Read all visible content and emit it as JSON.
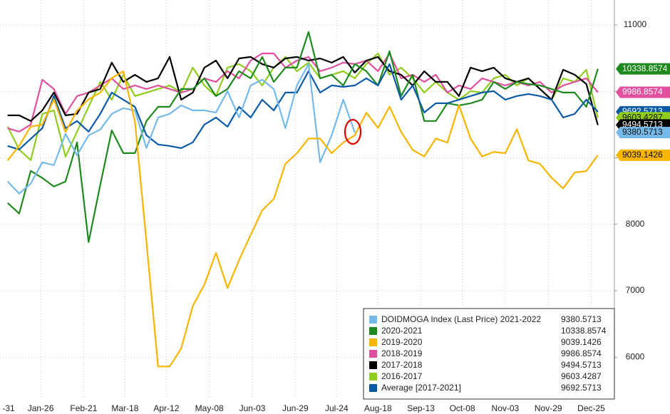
{
  "chart_data": {
    "type": "line",
    "x": [
      6,
      13,
      20,
      27,
      34,
      41,
      48,
      55,
      62,
      69,
      76,
      83,
      90,
      97,
      104,
      111,
      118,
      125,
      132,
      139,
      146,
      153,
      160,
      167,
      174,
      181,
      188,
      195,
      202,
      209,
      216,
      223,
      230,
      237,
      244,
      251,
      258,
      265,
      272,
      279,
      286,
      293,
      300,
      307,
      314,
      321,
      328,
      335,
      342,
      349,
      356,
      363
    ],
    "xlim": [
      1.4,
      373
    ],
    "xticks": [
      {
        "value": 0,
        "label": "-31"
      },
      {
        "value": 26,
        "label": "Jan-26"
      },
      {
        "value": 52,
        "label": "Feb-21"
      },
      {
        "value": 77,
        "label": "Mar-18"
      },
      {
        "value": 102,
        "label": "Apr-12"
      },
      {
        "value": 128,
        "label": "May-08"
      },
      {
        "value": 154,
        "label": "Jun-03"
      },
      {
        "value": 180,
        "label": "Jun-29"
      },
      {
        "value": 205,
        "label": "Jul-24"
      },
      {
        "value": 230,
        "label": "Aug-18"
      },
      {
        "value": 256,
        "label": "Sep-13"
      },
      {
        "value": 281,
        "label": "Oct-08"
      },
      {
        "value": 307,
        "label": "Nov-03"
      },
      {
        "value": 333,
        "label": "Nov-29"
      },
      {
        "value": 359,
        "label": "Dec-25"
      }
    ],
    "ylim": [
      5370,
      11375
    ],
    "yticks": [
      6000,
      7000,
      8000,
      9000,
      10000,
      11000
    ],
    "grid": true,
    "legend": "bottom-right",
    "series": [
      {
        "name": "DOIDMOGA Index (Last Price) 2021-2022",
        "color": "#74b9ea",
        "values": [
          8643,
          8461,
          8611,
          8932,
          8889,
          9361,
          9039,
          9339,
          9425,
          9661,
          9746,
          9714,
          9146,
          9607,
          9661,
          9789,
          9714,
          9714,
          9682,
          10004,
          9607,
          10089,
          10175,
          10036,
          9446,
          10089,
          10411,
          8932,
          9339,
          9875,
          9380.5713,
          null,
          null,
          null,
          null,
          null,
          null,
          null,
          null,
          null,
          null,
          null,
          null,
          null,
          null,
          null,
          null,
          null,
          null,
          null,
          null,
          null
        ]
      },
      {
        "name": "2020-2021",
        "color": "#1e8a1e",
        "values": [
          8321,
          8161,
          8804,
          8696,
          8568,
          8643,
          9232,
          7732,
          8589,
          9414,
          9071,
          9071,
          9554,
          9768,
          9768,
          10036,
          10036,
          10196,
          9929,
          10036,
          10304,
          10196,
          10518,
          10143,
          10357,
          10357,
          10893,
          10196,
          10250,
          10089,
          10411,
          10304,
          10089,
          10604,
          9929,
          10250,
          9554,
          9554,
          9821,
          9789,
          9821,
          9875,
          10143,
          10036,
          10143,
          10111,
          10089,
          10036,
          9982,
          9982,
          9768,
          10338.8574
        ]
      },
      {
        "name": "2019-2020",
        "color": "#f7b500",
        "values": [
          8960,
          9180,
          9470,
          9500,
          9880,
          9390,
          9710,
          9880,
          9980,
          10200,
          10300,
          9550,
          7730,
          5860,
          5860,
          6130,
          6770,
          7090,
          7570,
          7040,
          7460,
          7840,
          8210,
          8380,
          8910,
          9070,
          9290,
          9290,
          9070,
          9230,
          9340,
          9680,
          9450,
          9770,
          9390,
          9120,
          9020,
          9290,
          9230,
          9790,
          9290,
          9020,
          9090,
          9070,
          9430,
          8960,
          8910,
          8700,
          8540,
          8780,
          8800,
          9039.1426
        ]
      },
      {
        "name": "2018-2019",
        "color": "#e0509e",
        "values": [
          9446,
          9393,
          9500,
          10175,
          10036,
          9661,
          9929,
          9982,
          10089,
          10196,
          10036,
          10089,
          10036,
          10089,
          10036,
          9982,
          10036,
          10196,
          10143,
          10304,
          10196,
          10464,
          10571,
          10571,
          10357,
          10464,
          10518,
          10304,
          10357,
          10432,
          10411,
          10464,
          10304,
          10571,
          10196,
          10250,
          10143,
          10250,
          9982,
          10089,
          10036,
          10196,
          10143,
          10089,
          10143,
          10089,
          10143,
          9982,
          10089,
          10143,
          10196,
          9986.8574
        ]
      },
      {
        "name": "2017-2018",
        "color": "#000000",
        "values": [
          9639,
          9639,
          9554,
          9714,
          9982,
          9639,
          9661,
          9982,
          10036,
          10432,
          10143,
          10250,
          10143,
          10196,
          10518,
          9875,
          9982,
          10357,
          10464,
          10196,
          10496,
          10518,
          10411,
          10357,
          10496,
          10518,
          10464,
          10496,
          10432,
          10518,
          10282,
          10464,
          10518,
          10304,
          10250,
          10089,
          10304,
          10143,
          10143,
          9929,
          10357,
          10304,
          10357,
          10196,
          10143,
          10196,
          10036,
          9875,
          10325,
          10250,
          10111,
          9494.5713
        ]
      },
      {
        "name": "2016-2017",
        "color": "#8fcc1c",
        "values": [
          9468,
          9125,
          8964,
          9661,
          9714,
          9018,
          9393,
          9768,
          10143,
          9875,
          10250,
          9929,
          9982,
          10036,
          10089,
          9982,
          10357,
          10089,
          9929,
          10357,
          10411,
          10304,
          10089,
          10357,
          10518,
          10304,
          10432,
          10196,
          10250,
          10304,
          10196,
          10411,
          10571,
          10250,
          10357,
          10196,
          9982,
          10143,
          9982,
          9875,
          10004,
          9982,
          10196,
          10250,
          10089,
          10196,
          10036,
          9875,
          10196,
          10143,
          10325,
          9603.4287
        ]
      },
      {
        "name": "Average  [2017-2021]",
        "color": "#0b5aa6",
        "values": [
          9179,
          9125,
          9286,
          9446,
          9929,
          9446,
          9554,
          9393,
          9661,
          9982,
          9875,
          9768,
          9339,
          9200,
          9179,
          9146,
          9232,
          9500,
          9607,
          9468,
          9768,
          9607,
          9875,
          9714,
          9982,
          9982,
          10304,
          9982,
          10089,
          10068,
          10089,
          10196,
          10089,
          10411,
          9875,
          10089,
          9682,
          9821,
          9821,
          9875,
          9929,
          9982,
          10004,
          9875,
          9929,
          9961,
          9929,
          9875,
          9607,
          9661,
          9875,
          9692.5713
        ]
      }
    ]
  }
}
